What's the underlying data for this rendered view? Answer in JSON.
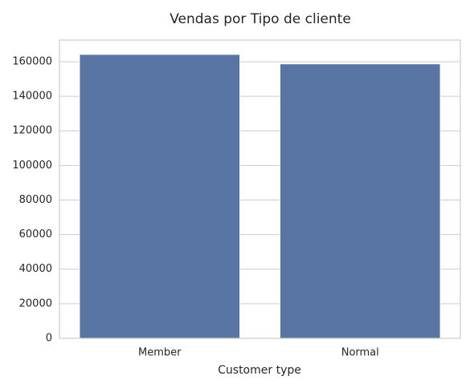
{
  "chart_data": {
    "type": "bar",
    "title": "Vendas por Tipo de cliente",
    "xlabel": "Customer type",
    "ylabel": "",
    "categories": [
      "Member",
      "Normal"
    ],
    "values": [
      164223,
      158743
    ],
    "ylim": [
      0,
      172500
    ],
    "yticks": [
      0,
      20000,
      40000,
      60000,
      80000,
      100000,
      120000,
      140000,
      160000
    ],
    "grid": "horizontal",
    "bar_color": "#5975a4",
    "bar_edge_color": "#ffffff"
  }
}
